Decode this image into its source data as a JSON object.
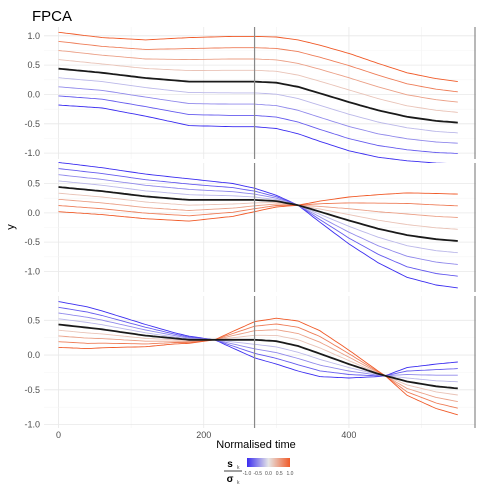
{
  "chart_data": {
    "type": "line",
    "title": "FPCA",
    "xlabel": "Normalised time",
    "ylabel": "y",
    "xlim": [
      -20,
      575
    ],
    "xticks": [
      0,
      200,
      400
    ],
    "grid": true,
    "legend_position": "bottom",
    "colors": {
      "low": "#3a2cf0",
      "mid": "#e6e6e6",
      "high": "#f05a28",
      "mean": "#1a1a1a",
      "vline": "#888888"
    },
    "legend": {
      "title_num": "s",
      "title_num_sub": "k",
      "title_den": "σ",
      "title_den_sub": "k",
      "tick_labels": [
        "-1.0",
        "-0.5",
        "0.0",
        "0.5",
        "1.0"
      ]
    },
    "vline_x": 270,
    "mean_curve": {
      "x": [
        0,
        60,
        120,
        180,
        240,
        270,
        300,
        330,
        360,
        400,
        440,
        480,
        520,
        550
      ],
      "y": [
        0.44,
        0.37,
        0.28,
        0.22,
        0.22,
        0.22,
        0.2,
        0.13,
        0.02,
        -0.13,
        -0.27,
        -0.38,
        -0.45,
        -0.48
      ]
    },
    "panels": [
      {
        "id": "PC1",
        "ylim": [
          -1.1,
          1.15
        ],
        "yticks": [
          "1.0",
          "0.5",
          "0.0",
          "-0.5",
          "-1.0"
        ],
        "ytick_values": [
          1.0,
          0.5,
          0.0,
          -0.5,
          -1.0
        ],
        "x": [
          0,
          60,
          120,
          180,
          240,
          270,
          300,
          330,
          360,
          400,
          440,
          480,
          520,
          550
        ],
        "loading": [
          0.62,
          0.6,
          0.65,
          0.75,
          0.77,
          0.77,
          0.78,
          0.8,
          0.82,
          0.83,
          0.8,
          0.75,
          0.72,
          0.7
        ],
        "scores": [
          -1.0,
          -0.75,
          -0.5,
          -0.25,
          0.25,
          0.5,
          0.75,
          1.0
        ]
      },
      {
        "id": "PC2",
        "ylim": [
          -1.35,
          0.85
        ],
        "yticks": [
          "0.5",
          "0.0",
          "-0.5",
          "-1.0"
        ],
        "ytick_values": [
          0.5,
          0.0,
          -0.5,
          -1.0
        ],
        "x": [
          0,
          60,
          120,
          180,
          240,
          270,
          300,
          330,
          360,
          400,
          440,
          480,
          520,
          550
        ],
        "loading": [
          -0.42,
          -0.4,
          -0.38,
          -0.36,
          -0.28,
          -0.2,
          -0.1,
          0.0,
          0.18,
          0.4,
          0.58,
          0.72,
          0.78,
          0.8
        ],
        "scores": [
          -1.0,
          -0.75,
          -0.5,
          -0.25,
          0.25,
          0.5,
          0.75,
          1.0
        ]
      },
      {
        "id": "PC3",
        "ylim": [
          -1.05,
          0.85
        ],
        "yticks": [
          "0.5",
          "0.0",
          "-0.5",
          "-1.0"
        ],
        "ytick_values": [
          0.5,
          0.0,
          -0.5,
          -1.0
        ],
        "x": [
          0,
          40,
          80,
          120,
          160,
          215,
          240,
          270,
          300,
          330,
          360,
          400,
          450,
          480,
          520,
          550
        ],
        "loading": [
          -0.33,
          -0.3,
          -0.23,
          -0.16,
          -0.08,
          0.0,
          0.12,
          0.26,
          0.33,
          0.36,
          0.33,
          0.2,
          0.0,
          -0.2,
          -0.32,
          -0.38
        ],
        "scores": [
          -1.0,
          -0.75,
          -0.5,
          -0.25,
          0.25,
          0.5,
          0.75,
          1.0
        ]
      }
    ]
  }
}
